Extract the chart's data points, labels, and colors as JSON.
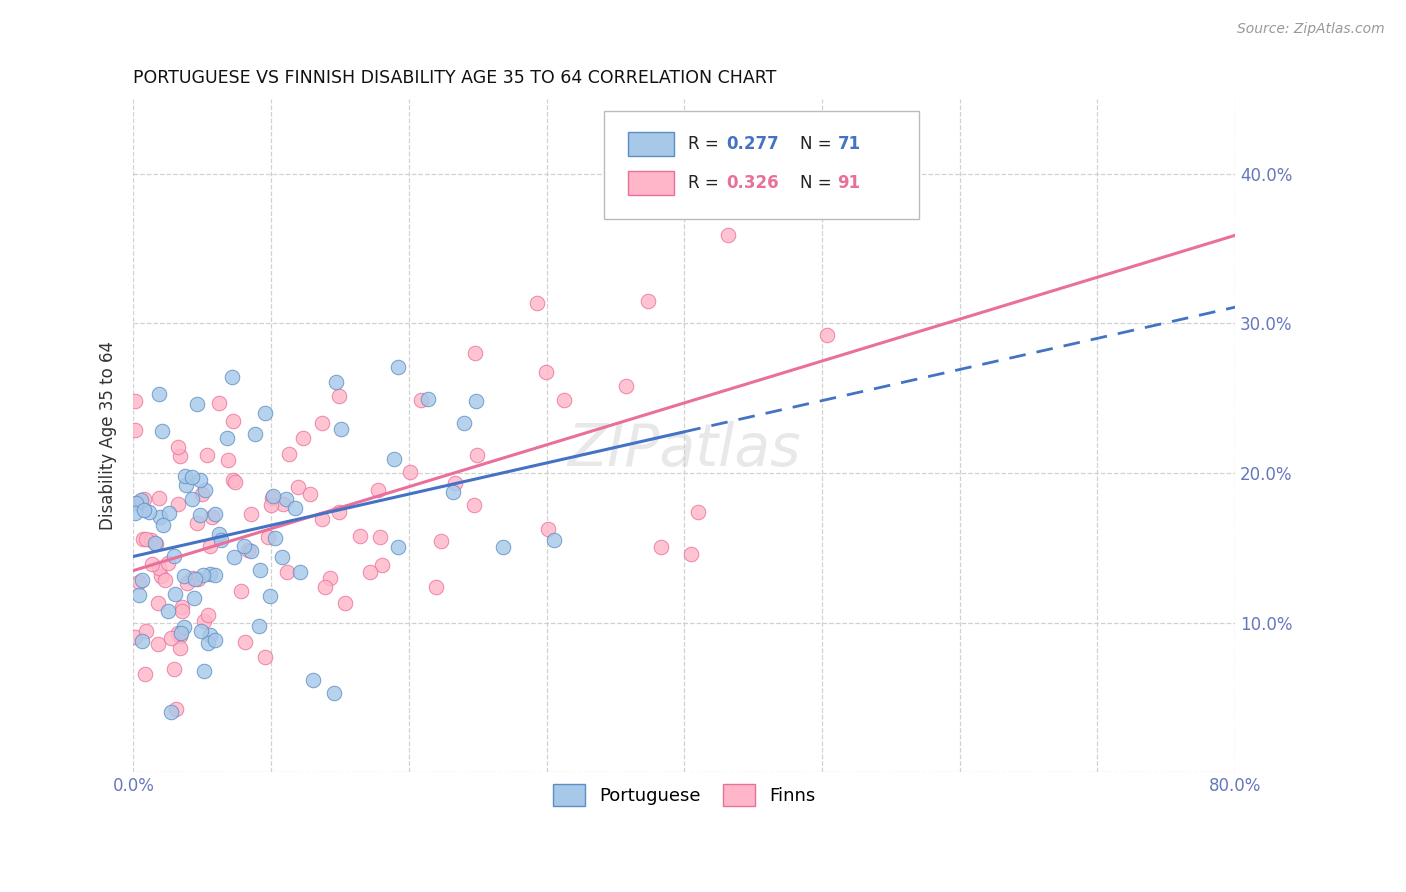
{
  "title": "PORTUGUESE VS FINNISH DISABILITY AGE 35 TO 64 CORRELATION CHART",
  "source": "Source: ZipAtlas.com",
  "ylabel": "Disability Age 35 to 64",
  "xlim": [
    0.0,
    0.8
  ],
  "ylim": [
    0.0,
    0.45
  ],
  "r_portuguese": 0.277,
  "n_portuguese": 71,
  "r_finns": 0.326,
  "n_finns": 91,
  "color_portuguese_fill": "#A8C8E8",
  "color_portuguese_edge": "#5B8EC4",
  "color_finns_fill": "#FFB6C8",
  "color_finns_edge": "#E8709A",
  "color_line_portuguese": "#4472C4",
  "color_line_finns": "#E8709A",
  "background_color": "#FFFFFF",
  "grid_color": "#CCCCCC",
  "legend_r_color_blue": "#4472C4",
  "legend_r_color_pink": "#E8709A"
}
